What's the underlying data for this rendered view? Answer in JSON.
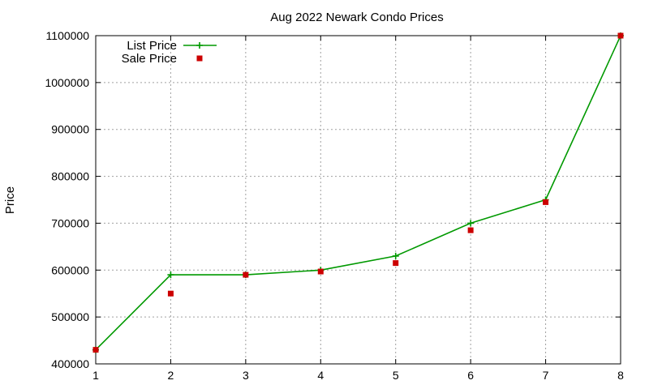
{
  "chart_data": {
    "type": "line",
    "title": "Aug 2022 Newark Condo Prices",
    "xlabel": "",
    "ylabel": "Price",
    "x": [
      1,
      2,
      3,
      4,
      5,
      6,
      7,
      8
    ],
    "xlim": [
      1,
      8
    ],
    "ylim": [
      400000,
      1100000
    ],
    "xticks": [
      "1",
      "2",
      "3",
      "4",
      "5",
      "6",
      "7",
      "8"
    ],
    "yticks": [
      "400000",
      "500000",
      "600000",
      "700000",
      "800000",
      "900000",
      "1000000",
      "1100000"
    ],
    "grid": true,
    "legend_position": "top-left",
    "series": [
      {
        "name": "List Price",
        "style": "line-with-plus-markers",
        "color": "#009900",
        "values": [
          430000,
          590000,
          590000,
          600000,
          630000,
          700000,
          750000,
          1100000
        ]
      },
      {
        "name": "Sale Price",
        "style": "square-markers",
        "color": "#cc0000",
        "values": [
          430000,
          550000,
          590000,
          597000,
          615000,
          685000,
          745000,
          1100000
        ]
      }
    ]
  }
}
